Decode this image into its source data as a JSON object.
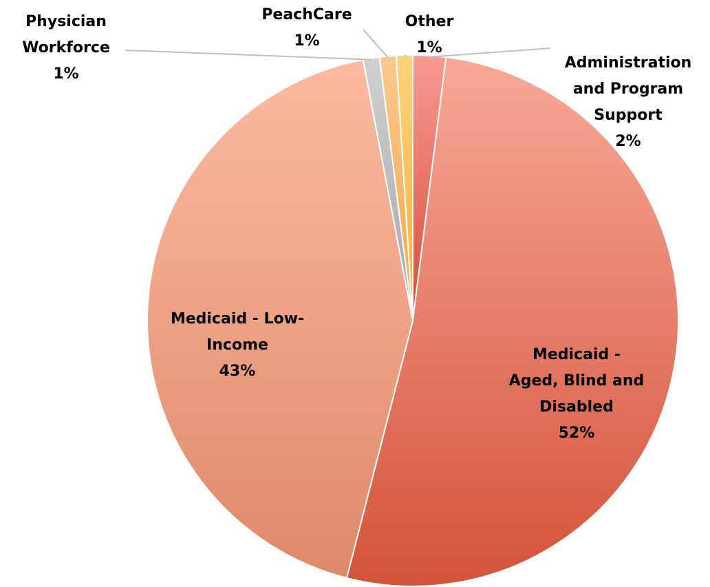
{
  "chart_data": {
    "type": "pie",
    "title": "",
    "slices": [
      {
        "label_lines": [
          "Administration",
          "and Program",
          "Support"
        ],
        "label": "Administration and Program Support",
        "value": 2,
        "value_label": "2%",
        "color_top": "#f79b93",
        "color_bottom": "#d94b3a"
      },
      {
        "label_lines": [
          "Medicaid -",
          "Aged, Blind and",
          "Disabled"
        ],
        "label": "Medicaid - Aged, Blind and Disabled",
        "value": 52,
        "value_label": "52%",
        "color_top": "#f8a898",
        "color_bottom": "#d4533a"
      },
      {
        "label_lines": [
          "Medicaid - Low-",
          "Income"
        ],
        "label": "Medicaid - Low-Income",
        "value": 43,
        "value_label": "43%",
        "color_top": "#fbbaa1",
        "color_bottom": "#e0896a"
      },
      {
        "label_lines": [
          "Physician",
          "Workforce"
        ],
        "label": "Physician Workforce",
        "value": 1,
        "value_label": "1%",
        "color_top": "#d0d0d0",
        "color_bottom": "#a6a6a6"
      },
      {
        "label_lines": [
          "PeachCare"
        ],
        "label": "PeachCare",
        "value": 1,
        "value_label": "1%",
        "color_top": "#fbc88d",
        "color_bottom": "#f2a64d"
      },
      {
        "label_lines": [
          "Other"
        ],
        "label": "Other",
        "value": 1,
        "value_label": "1%",
        "color_top": "#fdd27a",
        "color_bottom": "#f7b23a"
      }
    ]
  }
}
